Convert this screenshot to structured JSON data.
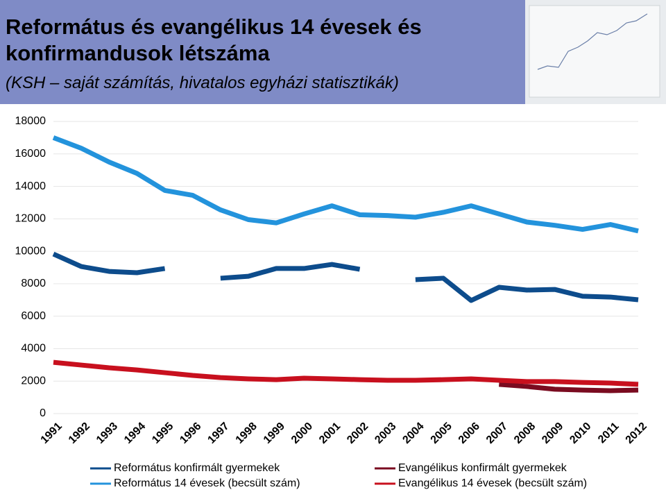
{
  "chart_data": {
    "type": "line",
    "title": "Református és evangélikus 14 évesek és konfirmandusok létszáma",
    "subtitle": "(KSH – saját számítás, hivatalos egyházi statisztikák)",
    "categories": [
      "1991",
      "1992",
      "1993",
      "1994",
      "1995",
      "1996",
      "1997",
      "1998",
      "1999",
      "2000",
      "2001",
      "2002",
      "2003",
      "2004",
      "2005",
      "2006",
      "2007",
      "2008",
      "2009",
      "2010",
      "2011",
      "2012"
    ],
    "ylim": [
      0,
      18000
    ],
    "yticks": [
      0,
      2000,
      4000,
      6000,
      8000,
      10000,
      12000,
      14000,
      16000,
      18000
    ],
    "grid": true,
    "series": [
      {
        "name": "Református konfirmált gyermekek",
        "color": "#0d4c8c",
        "values": [
          9830,
          9060,
          8760,
          8680,
          8940,
          null,
          8340,
          8460,
          8940,
          8940,
          9190,
          8890,
          null,
          8250,
          8340,
          6970,
          7780,
          7610,
          7650,
          7230,
          7180,
          7010
        ]
      },
      {
        "name": "Református 14 évesek (becsült szám)",
        "color": "#2393dc",
        "values": [
          17000,
          16350,
          15500,
          14800,
          13750,
          13450,
          12550,
          11950,
          11750,
          12300,
          12800,
          12250,
          12200,
          12100,
          12400,
          12800,
          12300,
          11800,
          11600,
          11350,
          11650,
          11250
        ]
      },
      {
        "name": "Evangélikus konfirmált gyermekek",
        "color": "#7a0b20",
        "values": [
          null,
          null,
          null,
          null,
          null,
          null,
          null,
          null,
          null,
          null,
          null,
          null,
          null,
          null,
          null,
          null,
          1800,
          1670,
          1500,
          1450,
          1410,
          1450
        ]
      },
      {
        "name": "Evangélikus 14 évesek (becsült szám)",
        "color": "#c8101e",
        "values": [
          3160,
          2990,
          2820,
          2690,
          2520,
          2350,
          2220,
          2140,
          2090,
          2180,
          2140,
          2090,
          2050,
          2050,
          2090,
          2140,
          2050,
          1970,
          1970,
          1920,
          1880,
          1800
        ]
      }
    ]
  }
}
